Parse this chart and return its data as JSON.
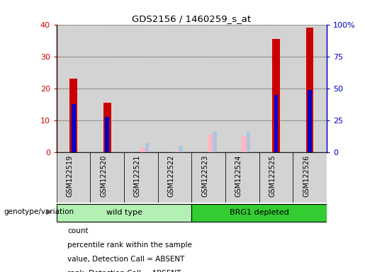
{
  "title": "GDS2156 / 1460259_s_at",
  "samples": [
    "GSM122519",
    "GSM122520",
    "GSM122521",
    "GSM122522",
    "GSM122523",
    "GSM122524",
    "GSM122525",
    "GSM122526"
  ],
  "count_values": [
    23,
    15.5,
    0,
    0,
    0,
    0,
    35.5,
    39
  ],
  "percentile_rank": [
    15,
    11,
    0,
    0,
    0,
    0,
    18,
    19.5
  ],
  "absent_value": [
    0,
    0,
    1.5,
    0.5,
    5.5,
    5,
    0,
    0
  ],
  "absent_rank": [
    0,
    0,
    3,
    2,
    6.5,
    6.5,
    0,
    0
  ],
  "ylim_left": [
    0,
    40
  ],
  "ylim_right": [
    0,
    100
  ],
  "yticks_left": [
    0,
    10,
    20,
    30,
    40
  ],
  "ytick_labels_left": [
    "0",
    "10",
    "20",
    "30",
    "40"
  ],
  "yticks_right": [
    0,
    25,
    50,
    75,
    100
  ],
  "ytick_labels_right": [
    "0",
    "25",
    "50",
    "75",
    "100%"
  ],
  "groups": [
    {
      "label": "wild type",
      "indices": [
        0,
        1,
        2,
        3
      ],
      "color": "#b3f0b3"
    },
    {
      "label": "BRG1 depleted",
      "indices": [
        4,
        5,
        6,
        7
      ],
      "color": "#33cc33"
    }
  ],
  "group_label": "genotype/variation",
  "count_color": "#cc0000",
  "rank_color": "#0000cc",
  "absent_value_color": "#ffb6c1",
  "absent_rank_color": "#b0c4de",
  "col_bg_color": "#d3d3d3",
  "legend_items": [
    {
      "color": "#cc0000",
      "label": "count"
    },
    {
      "color": "#0000cc",
      "label": "percentile rank within the sample"
    },
    {
      "color": "#ffb6c1",
      "label": "value, Detection Call = ABSENT"
    },
    {
      "color": "#b0c4de",
      "label": "rank, Detection Call = ABSENT"
    }
  ]
}
